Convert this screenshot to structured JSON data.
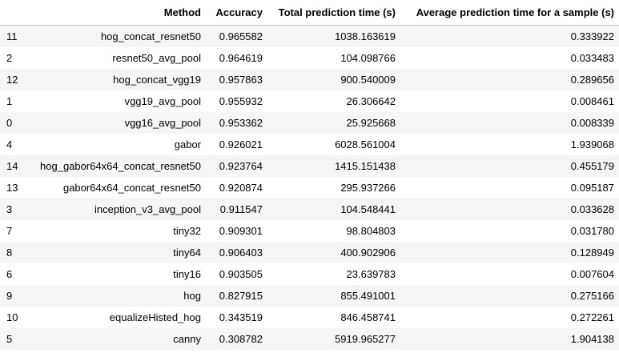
{
  "table": {
    "headers": {
      "index": "",
      "method": "Method",
      "accuracy": "Accuracy",
      "total_time": "Total prediction time (s)",
      "avg_time": "Average prediction time for a sample (s)"
    },
    "rows": [
      {
        "index": "11",
        "method": "hog_concat_resnet50",
        "accuracy": "0.965582",
        "total_time": "1038.163619",
        "avg_time": "0.333922"
      },
      {
        "index": "2",
        "method": "resnet50_avg_pool",
        "accuracy": "0.964619",
        "total_time": "104.098766",
        "avg_time": "0.033483"
      },
      {
        "index": "12",
        "method": "hog_concat_vgg19",
        "accuracy": "0.957863",
        "total_time": "900.540009",
        "avg_time": "0.289656"
      },
      {
        "index": "1",
        "method": "vgg19_avg_pool",
        "accuracy": "0.955932",
        "total_time": "26.306642",
        "avg_time": "0.008461"
      },
      {
        "index": "0",
        "method": "vgg16_avg_pool",
        "accuracy": "0.953362",
        "total_time": "25.925668",
        "avg_time": "0.008339"
      },
      {
        "index": "4",
        "method": "gabor",
        "accuracy": "0.926021",
        "total_time": "6028.561004",
        "avg_time": "1.939068"
      },
      {
        "index": "14",
        "method": "hog_gabor64x64_concat_resnet50",
        "accuracy": "0.923764",
        "total_time": "1415.151438",
        "avg_time": "0.455179"
      },
      {
        "index": "13",
        "method": "gabor64x64_concat_resnet50",
        "accuracy": "0.920874",
        "total_time": "295.937266",
        "avg_time": "0.095187"
      },
      {
        "index": "3",
        "method": "inception_v3_avg_pool",
        "accuracy": "0.911547",
        "total_time": "104.548441",
        "avg_time": "0.033628"
      },
      {
        "index": "7",
        "method": "tiny32",
        "accuracy": "0.909301",
        "total_time": "98.804803",
        "avg_time": "0.031780"
      },
      {
        "index": "8",
        "method": "tiny64",
        "accuracy": "0.906403",
        "total_time": "400.902906",
        "avg_time": "0.128949"
      },
      {
        "index": "6",
        "method": "tiny16",
        "accuracy": "0.903505",
        "total_time": "23.639783",
        "avg_time": "0.007604"
      },
      {
        "index": "9",
        "method": "hog",
        "accuracy": "0.827915",
        "total_time": "855.491001",
        "avg_time": "0.275166"
      },
      {
        "index": "10",
        "method": "equalizeHisted_hog",
        "accuracy": "0.343519",
        "total_time": "846.458741",
        "avg_time": "0.272261"
      },
      {
        "index": "5",
        "method": "canny",
        "accuracy": "0.308782",
        "total_time": "5919.965277",
        "avg_time": "1.904138"
      }
    ]
  }
}
